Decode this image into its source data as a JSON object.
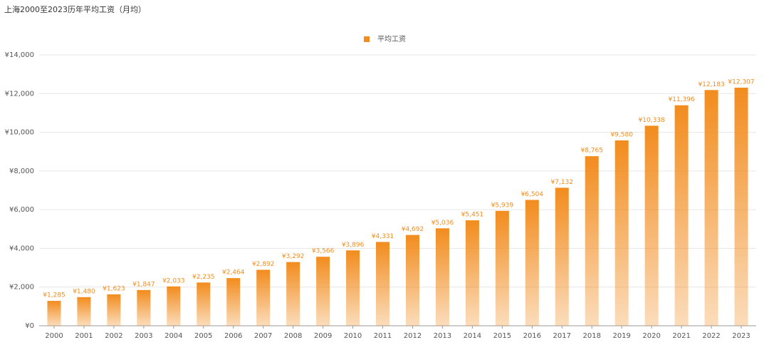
{
  "chart_data": {
    "type": "bar",
    "title": "上海2000至2023历年平均工资（月均）",
    "categories": [
      "2000",
      "2001",
      "2002",
      "2003",
      "2004",
      "2005",
      "2006",
      "2007",
      "2008",
      "2009",
      "2010",
      "2011",
      "2012",
      "2013",
      "2014",
      "2015",
      "2016",
      "2017",
      "2018",
      "2019",
      "2020",
      "2021",
      "2022",
      "2023"
    ],
    "series": [
      {
        "name": "平均工资",
        "color": "#f28c1e",
        "values": [
          1285,
          1480,
          1623,
          1847,
          2033,
          2235,
          2464,
          2892,
          3292,
          3566,
          3896,
          4331,
          4692,
          5036,
          5451,
          5939,
          6504,
          7132,
          8765,
          9580,
          10338,
          11396,
          12183,
          12307
        ],
        "value_labels": [
          "¥1,285",
          "¥1,480",
          "¥1,623",
          "¥1,847",
          "¥2,033",
          "¥2,235",
          "¥2,464",
          "¥2,892",
          "¥3,292",
          "¥3,566",
          "¥3,896",
          "¥4,331",
          "¥4,692",
          "¥5,036",
          "¥5,451",
          "¥5,939",
          "¥6,504",
          "¥7,132",
          "¥8,765",
          "¥9,580",
          "¥10,338",
          "¥11,396",
          "¥12,183",
          "¥12,307"
        ]
      }
    ],
    "ylim": [
      0,
      14000
    ],
    "yticks": [
      {
        "value": 0,
        "label": "¥0"
      },
      {
        "value": 2000,
        "label": "¥2,000"
      },
      {
        "value": 4000,
        "label": "¥4,000"
      },
      {
        "value": 6000,
        "label": "¥6,000"
      },
      {
        "value": 8000,
        "label": "¥8,000"
      },
      {
        "value": 10000,
        "label": "¥10,000"
      },
      {
        "value": 12000,
        "label": "¥12,000"
      },
      {
        "value": 14000,
        "label": "¥14,000"
      }
    ],
    "grid": true,
    "legend": "top"
  }
}
